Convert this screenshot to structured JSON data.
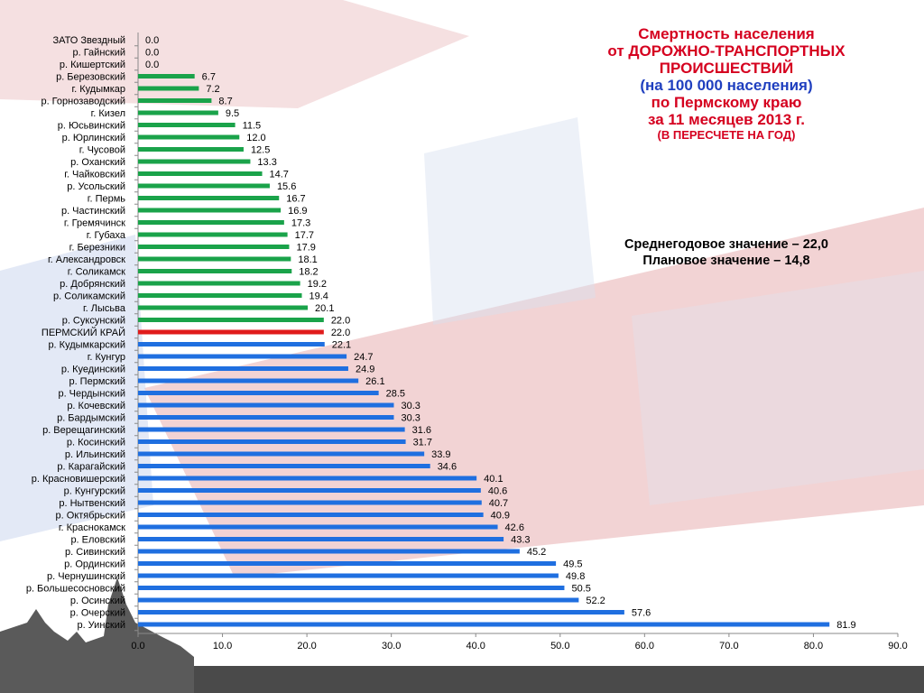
{
  "title": {
    "line1": "Смертность населения",
    "line2": "от ДОРОЖНО-ТРАНСПОРТНЫХ",
    "line3": "ПРОИСШЕСТВИЙ",
    "line4": "(на 100 000 населения)",
    "line5": "по Пермскому краю",
    "line6": "за 11 месяцев 2013 г.",
    "line7": "(В ПЕРЕСЧЕТЕ НА ГОД)"
  },
  "stats": {
    "average": "Среднегодовое значение – 22,0",
    "plan": "Плановое значение – 14,8"
  },
  "colors": {
    "below": "#1aa34a",
    "region": "#e01b1b",
    "above": "#1f6fe0",
    "title": "#d5001f",
    "subtitle": "#1f3fbf"
  },
  "chart_data": {
    "type": "bar",
    "orientation": "horizontal",
    "xlim": [
      0,
      90
    ],
    "xticks": [
      "0.0",
      "10.0",
      "20.0",
      "30.0",
      "40.0",
      "50.0",
      "60.0",
      "70.0",
      "80.0",
      "90.0"
    ],
    "grid": false,
    "legend": "none",
    "categories": [
      "ЗАТО Звездный",
      "р. Гайнский",
      "р. Кишертский",
      "р. Березовский",
      "г. Кудымкар",
      "р. Горнозаводский",
      "г. Кизел",
      "р. Юсьвинский",
      "р. Юрлинский",
      "г. Чусовой",
      "р. Оханский",
      "г. Чайковский",
      "р. Усольский",
      "г. Пермь",
      "р. Частинский",
      "г. Гремячинск",
      "г. Губаха",
      "г. Березники",
      "г. Александровск",
      "г. Соликамск",
      "р. Добрянский",
      "р. Соликамский",
      "г. Лысьва",
      "р. Суксунский",
      "ПЕРМСКИЙ КРАЙ",
      "р. Кудымкарский",
      "г. Кунгур",
      "р. Куединский",
      "р. Пермский",
      "р. Чердынский",
      "р. Кочевский",
      "р. Бардымский",
      "р. Верещагинский",
      "р. Косинский",
      "р. Ильинский",
      "р. Карагайский",
      "р. Красновишерский",
      "р. Кунгурский",
      "р. Нытвенский",
      "р. Октябрьский",
      "г. Краснокамск",
      "р. Еловский",
      "р. Сивинский",
      "р. Ординский",
      "р. Чернушинский",
      "р. Большесосновский",
      "р. Осинский",
      "р. Очерский",
      "р. Уинский"
    ],
    "values": [
      0.0,
      0.0,
      0.0,
      6.7,
      7.2,
      8.7,
      9.5,
      11.5,
      12.0,
      12.5,
      13.3,
      14.7,
      15.6,
      16.7,
      16.9,
      17.3,
      17.7,
      17.9,
      18.1,
      18.2,
      19.2,
      19.4,
      20.1,
      22.0,
      22.0,
      22.1,
      24.7,
      24.9,
      26.1,
      28.5,
      30.3,
      30.3,
      31.6,
      31.7,
      33.9,
      34.6,
      40.1,
      40.6,
      40.7,
      40.9,
      42.6,
      43.3,
      45.2,
      49.5,
      49.8,
      50.5,
      52.2,
      57.6,
      81.9
    ],
    "value_labels": [
      "0.0",
      "0.0",
      "0.0",
      "6.7",
      "7.2",
      "8.7",
      "9.5",
      "11.5",
      "12.0",
      "12.5",
      "13.3",
      "14.7",
      "15.6",
      "16.7",
      "16.9",
      "17.3",
      "17.7",
      "17.9",
      "18.1",
      "18.2",
      "19.2",
      "19.4",
      "20.1",
      "22.0",
      "22.0",
      "22.1",
      "24.7",
      "24.9",
      "26.1",
      "28.5",
      "30.3",
      "30.3",
      "31.6",
      "31.7",
      "33.9",
      "34.6",
      "40.1",
      "40.6",
      "40.7",
      "40.9",
      "42.6",
      "43.3",
      "45.2",
      "49.5",
      "49.8",
      "50.5",
      "52.2",
      "57.6",
      "81.9"
    ],
    "bar_colors": [
      "below",
      "below",
      "below",
      "below",
      "below",
      "below",
      "below",
      "below",
      "below",
      "below",
      "below",
      "below",
      "below",
      "below",
      "below",
      "below",
      "below",
      "below",
      "below",
      "below",
      "below",
      "below",
      "below",
      "below",
      "region",
      "above",
      "above",
      "above",
      "above",
      "above",
      "above",
      "above",
      "above",
      "above",
      "above",
      "above",
      "above",
      "above",
      "above",
      "above",
      "above",
      "above",
      "above",
      "above",
      "above",
      "above",
      "above",
      "above",
      "above"
    ]
  }
}
